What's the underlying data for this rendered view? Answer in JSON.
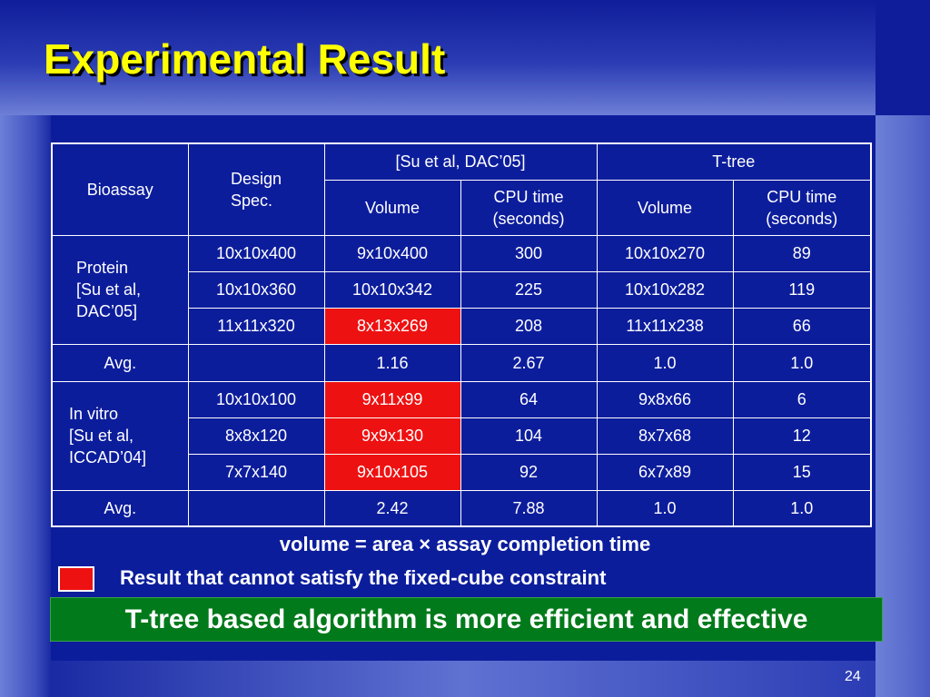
{
  "slide": {
    "title": "Experimental Result",
    "page_number": "24"
  },
  "table": {
    "header": {
      "bioassay": "Bioassay",
      "design_spec": "Design\nSpec.",
      "group_su": "[Su et al, DAC’05]",
      "group_ttree": "T-tree",
      "volume": "Volume",
      "cpu_time": "CPU time\n(seconds)"
    },
    "protein": {
      "label": "Protein\n[Su et al,\nDAC’05]",
      "rows": [
        {
          "spec": "10x10x400",
          "su_volume": "9x10x400",
          "su_cpu": "300",
          "tt_volume": "10x10x270",
          "tt_cpu": "89"
        },
        {
          "spec": "10x10x360",
          "su_volume": "10x10x342",
          "su_cpu": "225",
          "tt_volume": "10x10x282",
          "tt_cpu": "119"
        },
        {
          "spec": "11x11x320",
          "su_volume": "8x13x269",
          "su_cpu": "208",
          "tt_volume": "11x11x238",
          "tt_cpu": "66"
        }
      ],
      "avg": {
        "label": "Avg.",
        "su_volume": "1.16",
        "su_cpu": "2.67",
        "tt_volume": "1.0",
        "tt_cpu": "1.0"
      }
    },
    "invitro": {
      "label": "In vitro\n[Su et al,\nICCAD’04]",
      "rows": [
        {
          "spec": "10x10x100",
          "su_volume": "9x11x99",
          "su_cpu": "64",
          "tt_volume": "9x8x66",
          "tt_cpu": "6"
        },
        {
          "spec": "8x8x120",
          "su_volume": "9x9x130",
          "su_cpu": "104",
          "tt_volume": "8x7x68",
          "tt_cpu": "12"
        },
        {
          "spec": "7x7x140",
          "su_volume": "9x10x105",
          "su_cpu": "92",
          "tt_volume": "6x7x89",
          "tt_cpu": "15"
        }
      ],
      "avg": {
        "label": "Avg.",
        "su_volume": "2.42",
        "su_cpu": "7.88",
        "tt_volume": "1.0",
        "tt_cpu": "1.0"
      }
    },
    "highlight_color": "#ee1111"
  },
  "notes": {
    "formula": "volume = area × assay completion time",
    "legend": "Result that cannot satisfy the fixed-cube constraint",
    "conclusion": "T-tree based algorithm is more efficient and effective"
  },
  "colors": {
    "background": "#0c1d9c",
    "title": "#ffff00",
    "conclusion_box": "#007a1a"
  }
}
